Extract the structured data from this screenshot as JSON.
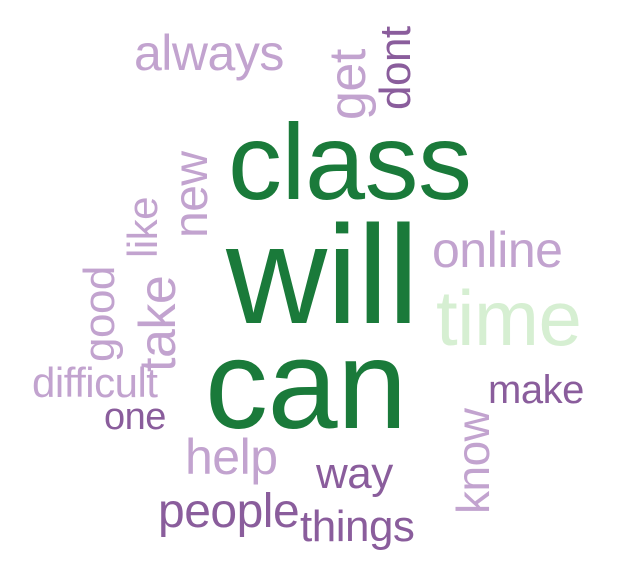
{
  "colors": {
    "dark_green": "#1a7a3a",
    "light_green": "#d6efd2",
    "light_purple": "#c2a3cf",
    "mid_purple": "#a07fba",
    "dark_purple": "#8a5d9c"
  },
  "words": {
    "class": {
      "text": "class",
      "color": "#1a7a3a"
    },
    "will": {
      "text": "will",
      "color": "#1a7a3a"
    },
    "can": {
      "text": "can",
      "color": "#1a7a3a"
    },
    "time": {
      "text": "time",
      "color": "#d6efd2"
    },
    "online": {
      "text": "online",
      "color": "#c2a3cf"
    },
    "always": {
      "text": "always",
      "color": "#c2a3cf"
    },
    "get": {
      "text": "get",
      "color": "#c2a3cf"
    },
    "dont": {
      "text": "dont",
      "color": "#8a5d9c"
    },
    "new": {
      "text": "new",
      "color": "#c2a3cf"
    },
    "like": {
      "text": "like",
      "color": "#c2a3cf"
    },
    "take": {
      "text": "take",
      "color": "#c2a3cf"
    },
    "good": {
      "text": "good",
      "color": "#c2a3cf"
    },
    "difficult": {
      "text": "difficult",
      "color": "#c2a3cf"
    },
    "one": {
      "text": "one",
      "color": "#8a5d9c"
    },
    "make": {
      "text": "make",
      "color": "#8a5d9c"
    },
    "know": {
      "text": "know",
      "color": "#c2a3cf"
    },
    "help": {
      "text": "help",
      "color": "#c2a3cf"
    },
    "way": {
      "text": "way",
      "color": "#8a5d9c"
    },
    "people": {
      "text": "people",
      "color": "#8a5d9c"
    },
    "things": {
      "text": "things",
      "color": "#8a5d9c"
    }
  }
}
